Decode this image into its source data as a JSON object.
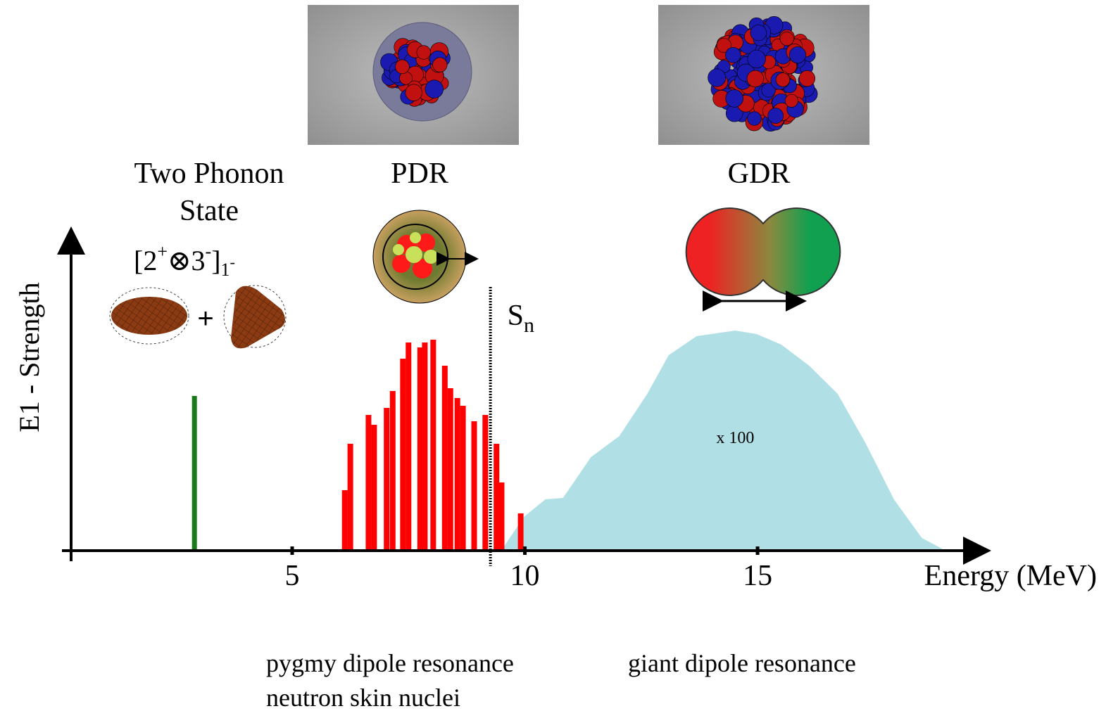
{
  "chart_data": {
    "type": "bar",
    "y_label": "E1 - Strength",
    "x_label": "Energy (MeV)",
    "xlim": [
      0.25,
      19.9
    ],
    "ylim": [
      0,
      453
    ],
    "xticks": [
      5,
      10,
      15
    ],
    "threshold": {
      "x": 9.26,
      "label": "S",
      "label_sub": "n"
    },
    "series": [
      {
        "type": "bar",
        "color": "#1a7a1a",
        "x": [
          2.9
        ],
        "values": [
          220
        ]
      },
      {
        "type": "bar",
        "color": "#ff0000",
        "x": [
          6.13,
          6.25,
          6.64,
          6.76,
          7.03,
          7.16,
          7.38,
          7.5,
          7.75,
          7.85,
          8.03,
          8.28,
          8.4,
          8.55,
          8.67,
          8.91,
          9.15,
          9.39,
          9.5,
          9.91
        ],
        "values": [
          86,
          152,
          193,
          179,
          203,
          227,
          273,
          296,
          289,
          296,
          300,
          263,
          231,
          217,
          206,
          184,
          193,
          152,
          97,
          53
        ]
      },
      {
        "type": "area",
        "color": "#b0e0e6",
        "x": [
          9.49,
          9.98,
          10.44,
          10.82,
          11.42,
          12.03,
          12.63,
          13.09,
          13.69,
          14.52,
          14.98,
          15.51,
          16.11,
          16.72,
          17.32,
          17.93,
          18.53,
          18.96
        ],
        "values": [
          0,
          48,
          73,
          75,
          133,
          163,
          223,
          278,
          305,
          313,
          308,
          293,
          263,
          223,
          153,
          73,
          18,
          3
        ],
        "annotation": "x 100"
      }
    ],
    "labels": {
      "two_phonon": [
        "Two Phonon",
        "State"
      ],
      "configuration": {
        "open": "[2",
        "sup1": "+",
        "otimes": "⊗3",
        "sup2": "-",
        "close": "]",
        "sub": "1",
        "subsup": "-"
      },
      "pdr": "PDR",
      "gdr": "GDR",
      "pdr_caption": [
        "pygmy dipole resonance",
        "neutron skin nuclei"
      ],
      "gdr_caption": "giant dipole resonance"
    }
  }
}
